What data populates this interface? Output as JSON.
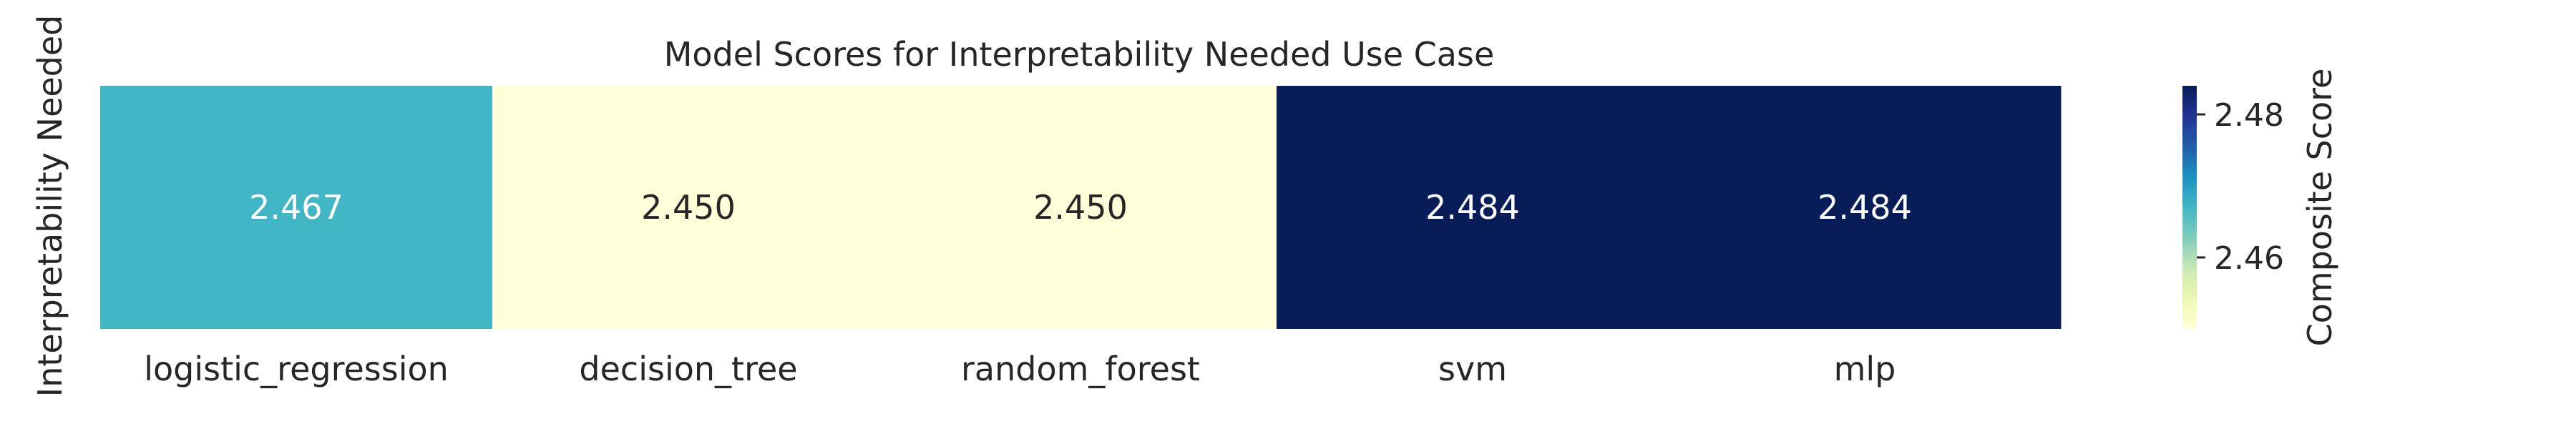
{
  "chart_data": {
    "type": "heatmap",
    "title": "Model Scores for Interpretability Needed Use Case",
    "row_labels": [
      "Interpretability Needed"
    ],
    "col_labels": [
      "logistic_regression",
      "decision_tree",
      "random_forest",
      "svm",
      "mlp"
    ],
    "values": [
      [
        2.467,
        2.45,
        2.45,
        2.484,
        2.484
      ]
    ],
    "cell_labels": [
      [
        "2.467",
        "2.450",
        "2.450",
        "2.484",
        "2.484"
      ]
    ],
    "colorbar": {
      "label": "Composite Score",
      "range": [
        2.45,
        2.484
      ],
      "ticks": [
        2.46,
        2.48
      ],
      "tick_labels": [
        "2.46",
        "2.48"
      ],
      "colormap": "YlGnBu"
    }
  }
}
